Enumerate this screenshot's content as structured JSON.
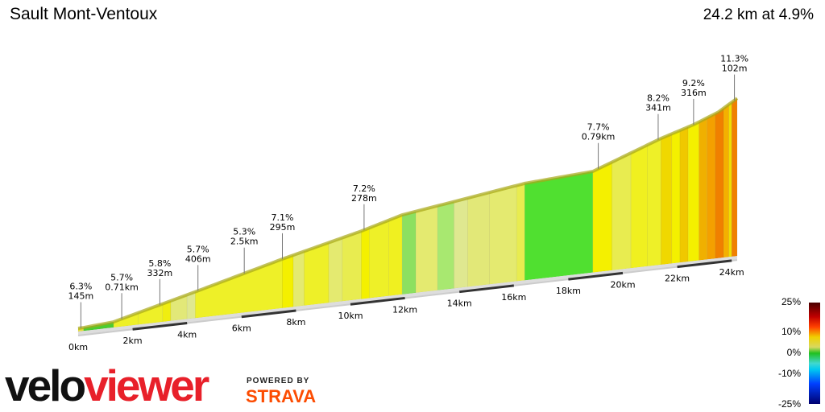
{
  "title": "Sault Mont-Ventoux",
  "summary": "24.2 km at 4.9%",
  "chart_data": {
    "type": "area",
    "title": "Sault Mont-Ventoux",
    "subtitle": "24.2 km at 4.9%",
    "total_km": 24.2,
    "avg_gradient_pct": 4.9,
    "elevation_profile_m": [
      [
        0,
        765
      ],
      [
        0.2,
        766
      ],
      [
        1.3,
        783
      ],
      [
        4.5,
        953
      ],
      [
        7.5,
        1117
      ],
      [
        10.4,
        1262
      ],
      [
        11.9,
        1350
      ],
      [
        16.4,
        1484
      ],
      [
        18.9,
        1516
      ],
      [
        21.4,
        1709
      ],
      [
        22.6,
        1786
      ],
      [
        23.5,
        1860
      ],
      [
        24.2,
        1950
      ]
    ],
    "segments": [
      {
        "from": 0,
        "to": 0.2,
        "color": "#e8e040"
      },
      {
        "from": 0.2,
        "to": 1.3,
        "color": "#4ccc30"
      },
      {
        "from": 1.3,
        "to": 2.2,
        "color": "#eef028"
      },
      {
        "from": 2.2,
        "to": 3.1,
        "color": "#eef028"
      },
      {
        "from": 3.1,
        "to": 3.4,
        "color": "#f0ee10"
      },
      {
        "from": 3.4,
        "to": 4.0,
        "color": "#e2e878"
      },
      {
        "from": 4.0,
        "to": 4.3,
        "color": "#dfe890"
      },
      {
        "from": 4.3,
        "to": 7.5,
        "color": "#eef028"
      },
      {
        "from": 7.5,
        "to": 7.9,
        "color": "#f4f000"
      },
      {
        "from": 7.9,
        "to": 8.3,
        "color": "#e4ea70"
      },
      {
        "from": 8.3,
        "to": 9.2,
        "color": "#eef028"
      },
      {
        "from": 9.2,
        "to": 9.7,
        "color": "#e4ea70"
      },
      {
        "from": 9.7,
        "to": 10.4,
        "color": "#e8ec50"
      },
      {
        "from": 10.4,
        "to": 10.7,
        "color": "#f4f000"
      },
      {
        "from": 10.7,
        "to": 11.4,
        "color": "#eef028"
      },
      {
        "from": 11.4,
        "to": 11.9,
        "color": "#f0f020"
      },
      {
        "from": 11.9,
        "to": 12.4,
        "color": "#8ce060"
      },
      {
        "from": 12.4,
        "to": 13.2,
        "color": "#e4ea70"
      },
      {
        "from": 13.2,
        "to": 13.8,
        "color": "#a8e870"
      },
      {
        "from": 13.8,
        "to": 14.3,
        "color": "#dfe890"
      },
      {
        "from": 14.3,
        "to": 15.1,
        "color": "#e2e878"
      },
      {
        "from": 15.1,
        "to": 16.1,
        "color": "#e4ea70"
      },
      {
        "from": 16.1,
        "to": 16.4,
        "color": "#e8ec50"
      },
      {
        "from": 16.4,
        "to": 18.9,
        "color": "#50e030"
      },
      {
        "from": 18.9,
        "to": 19.6,
        "color": "#f4f000"
      },
      {
        "from": 19.6,
        "to": 20.3,
        "color": "#e8ec50"
      },
      {
        "from": 20.3,
        "to": 20.9,
        "color": "#f0f020"
      },
      {
        "from": 20.9,
        "to": 21.4,
        "color": "#eef028"
      },
      {
        "from": 21.4,
        "to": 21.8,
        "color": "#f0d800"
      },
      {
        "from": 21.8,
        "to": 22.1,
        "color": "#f4f000"
      },
      {
        "from": 22.1,
        "to": 22.4,
        "color": "#f0c800"
      },
      {
        "from": 22.4,
        "to": 22.8,
        "color": "#f4f000"
      },
      {
        "from": 22.8,
        "to": 23.1,
        "color": "#f0b000"
      },
      {
        "from": 23.1,
        "to": 23.4,
        "color": "#f4a000"
      },
      {
        "from": 23.4,
        "to": 23.7,
        "color": "#f08000"
      },
      {
        "from": 23.7,
        "to": 23.9,
        "color": "#f4b000"
      },
      {
        "from": 23.9,
        "to": 24.0,
        "color": "#f0e000"
      },
      {
        "from": 24.0,
        "to": 24.2,
        "color": "#f08000"
      }
    ],
    "annotations": [
      {
        "km": 0.1,
        "gradient": "6.3%",
        "length": "145m"
      },
      {
        "km": 1.6,
        "gradient": "5.7%",
        "length": "0.71km"
      },
      {
        "km": 3.0,
        "gradient": "5.8%",
        "length": "332m"
      },
      {
        "km": 4.4,
        "gradient": "5.7%",
        "length": "406m"
      },
      {
        "km": 6.1,
        "gradient": "5.3%",
        "length": "2.5km"
      },
      {
        "km": 7.5,
        "gradient": "7.1%",
        "length": "295m"
      },
      {
        "km": 10.5,
        "gradient": "7.2%",
        "length": "278m"
      },
      {
        "km": 19.1,
        "gradient": "7.7%",
        "length": "0.79km"
      },
      {
        "km": 21.3,
        "gradient": "8.2%",
        "length": "341m"
      },
      {
        "km": 22.6,
        "gradient": "9.2%",
        "length": "316m"
      },
      {
        "km": 24.1,
        "gradient": "11.3%",
        "length": "102m"
      }
    ],
    "x_ticks": [
      {
        "km": 0,
        "label": "0km"
      },
      {
        "km": 2,
        "label": "2km"
      },
      {
        "km": 4,
        "label": "4km"
      },
      {
        "km": 6,
        "label": "6km"
      },
      {
        "km": 8,
        "label": "8km"
      },
      {
        "km": 10,
        "label": "10km"
      },
      {
        "km": 12,
        "label": "12km"
      },
      {
        "km": 14,
        "label": "14km"
      },
      {
        "km": 16,
        "label": "16km"
      },
      {
        "km": 18,
        "label": "18km"
      },
      {
        "km": 20,
        "label": "20km"
      },
      {
        "km": 22,
        "label": "22km"
      },
      {
        "km": 24,
        "label": "24km"
      }
    ],
    "legend": {
      "title": "gradient",
      "labels": [
        "25%",
        "10%",
        "0%",
        "-10%",
        "-25%"
      ]
    }
  },
  "logo": {
    "velo": "velo",
    "viewer": "viewer",
    "powered": "POWERED BY",
    "strava": "STRAVA"
  }
}
